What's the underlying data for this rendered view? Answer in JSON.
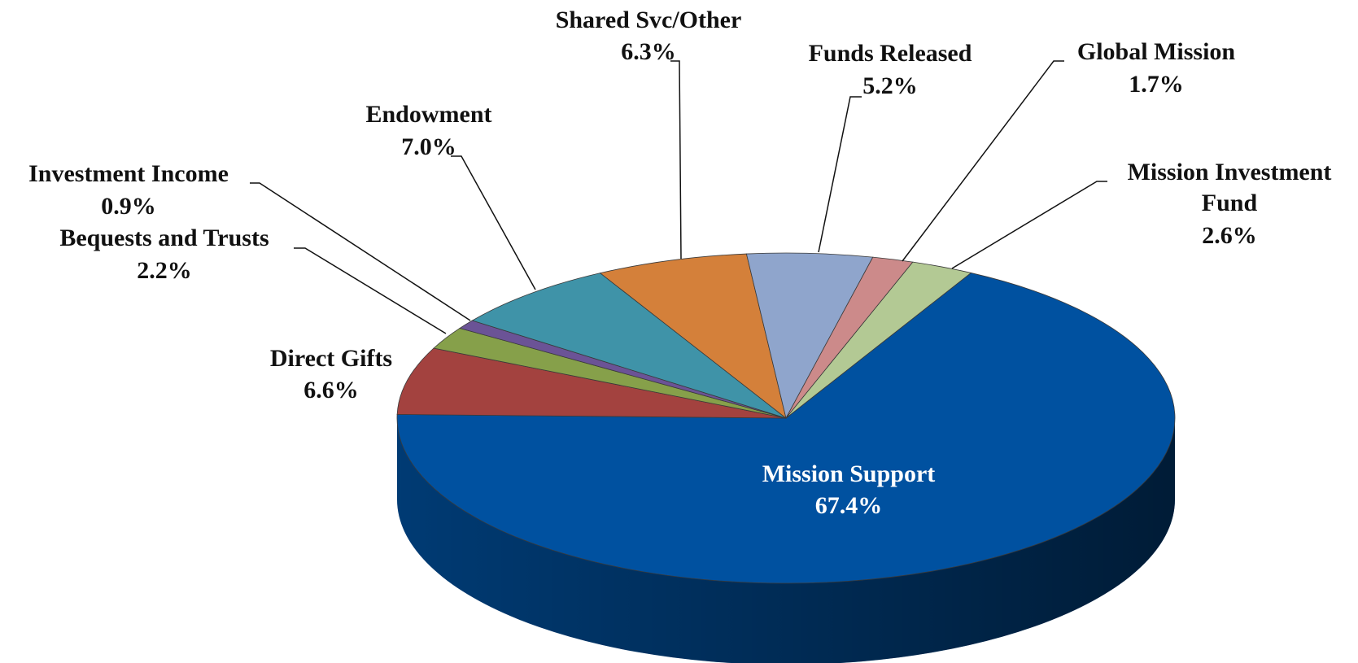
{
  "chart_data": {
    "type": "pie",
    "categories": [
      "Mission Support",
      "Direct Gifts",
      "Bequests and Trusts",
      "Investment Income",
      "Endowment",
      "Shared Svc/Other",
      "Funds Released",
      "Global Mission",
      "Mission Investment Fund"
    ],
    "values": [
      67.4,
      6.6,
      2.2,
      0.9,
      7.0,
      6.3,
      5.2,
      1.7,
      2.6
    ],
    "value_labels": [
      "67.4%",
      "6.6%",
      "2.2%",
      "0.9%",
      "7.0%",
      "6.3%",
      "5.2%",
      "1.7%",
      "2.6%"
    ],
    "colors": [
      "#0051a0",
      "#a3423f",
      "#86a04a",
      "#6b5396",
      "#3f93a8",
      "#d4803a",
      "#8fa5cc",
      "#cc8a8a",
      "#b3c994"
    ]
  }
}
